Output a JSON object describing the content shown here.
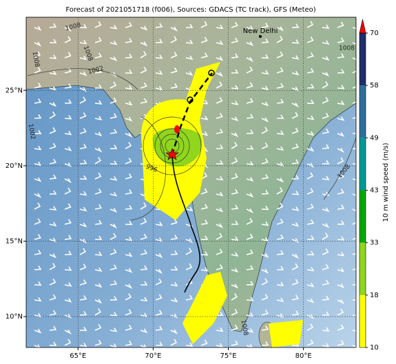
{
  "map": {
    "title": "Forecast of 2021051718 (f006), Sources: GDACS (TC track), GFS (Meteo)",
    "xlim": [
      61.55,
      83.5
    ],
    "ylim": [
      7.95,
      29.85
    ],
    "xticks": [
      {
        "value": 65,
        "label": "65°E"
      },
      {
        "value": 70,
        "label": "70°E"
      },
      {
        "value": 75,
        "label": "75°E"
      },
      {
        "value": 80,
        "label": "80°E"
      }
    ],
    "yticks": [
      {
        "value": 10,
        "label": "10°N"
      },
      {
        "value": 15,
        "label": "15°N"
      },
      {
        "value": 20,
        "label": "20°N"
      },
      {
        "value": 25,
        "label": "25°N"
      }
    ],
    "place": "New Delhi",
    "isobar_labels": [
      "1008",
      "1008",
      "1008",
      "1008",
      "1008",
      "1008",
      "1002",
      "1002",
      "996"
    ],
    "colorbar": {
      "label": "10 m wind speed (m/s)",
      "ticks": [
        10,
        18,
        33,
        43,
        49,
        58,
        70
      ],
      "colors": [
        "#ffff00",
        "#8fd61c",
        "#00a800",
        "#009a96",
        "#2f6e9c",
        "#1e2f6b"
      ],
      "extend_color": "#ff0000"
    }
  }
}
